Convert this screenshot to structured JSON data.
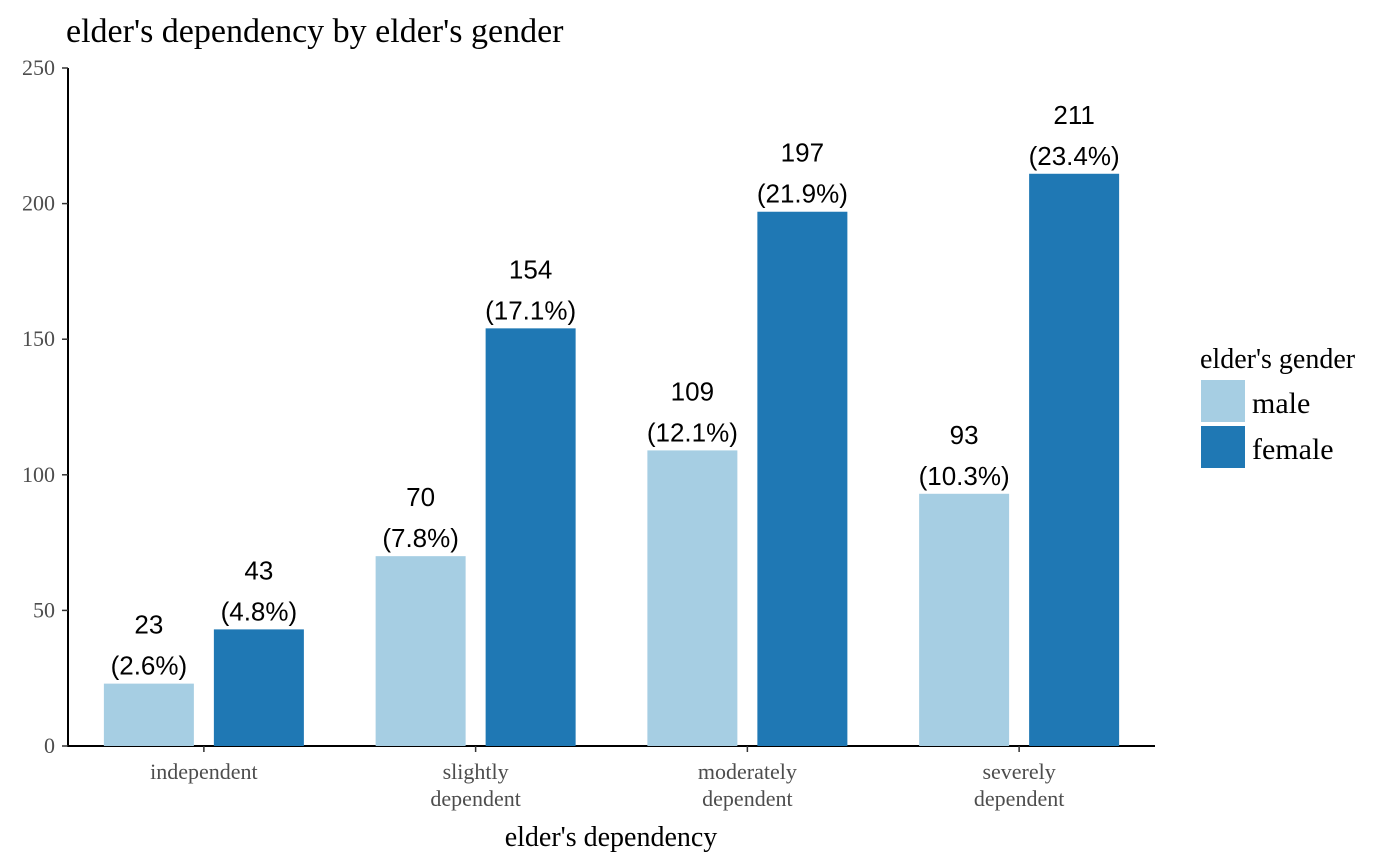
{
  "chart_data": {
    "type": "bar",
    "title": "elder's dependency by elder's gender",
    "xlabel": "elder's dependency",
    "ylabel": "",
    "categories": [
      [
        "independent"
      ],
      [
        "slightly",
        "dependent"
      ],
      [
        "moderately",
        "dependent"
      ],
      [
        "severely",
        "dependent"
      ]
    ],
    "ylim": [
      0,
      250
    ],
    "yticks": [
      0,
      50,
      100,
      150,
      200,
      250
    ],
    "grid": false,
    "legend": {
      "title": "elder's gender",
      "position": "right"
    },
    "series": [
      {
        "name": "male",
        "color": "#a6cee3",
        "values": [
          23,
          70,
          109,
          93
        ],
        "percent_labels": [
          "(2.6%)",
          "(7.8%)",
          "(12.1%)",
          "(10.3%)"
        ]
      },
      {
        "name": "female",
        "color": "#1f78b4",
        "values": [
          43,
          154,
          197,
          211
        ],
        "percent_labels": [
          "(4.8%)",
          "(17.1%)",
          "(21.9%)",
          "(23.4%)"
        ]
      }
    ]
  }
}
